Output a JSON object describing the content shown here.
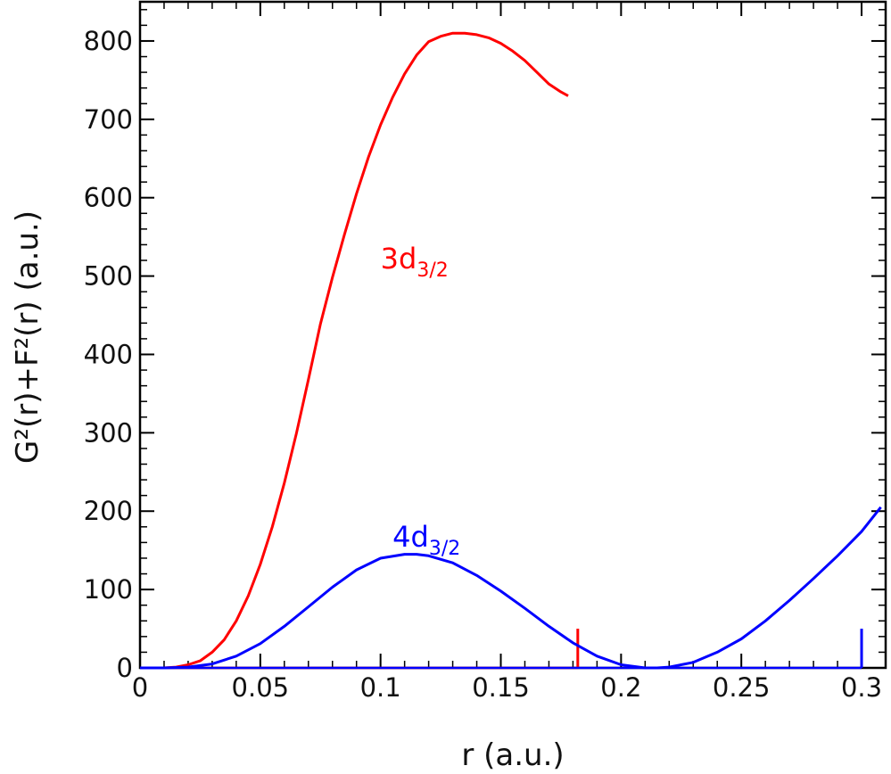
{
  "chart_data": {
    "type": "line",
    "xlabel": "r (a.u.)",
    "ylabel": "G²(r)+F²(r) (a.u.)",
    "xlim": [
      0,
      0.31
    ],
    "ylim": [
      0,
      850
    ],
    "x_ticks": [
      0,
      0.05,
      0.1,
      0.15,
      0.2,
      0.25,
      0.3
    ],
    "x_tick_labels": [
      "0",
      "0.05",
      "0.1",
      "0.15",
      "0.2",
      "0.25",
      "0.3"
    ],
    "y_ticks": [
      0,
      100,
      200,
      300,
      400,
      500,
      600,
      700,
      800
    ],
    "y_tick_labels": [
      "0",
      "100",
      "200",
      "300",
      "400",
      "500",
      "600",
      "700",
      "800"
    ],
    "grid": false,
    "series": [
      {
        "name": "3d3/2",
        "label_main": "3d",
        "label_sub": "3/2",
        "color": "#ff0000",
        "x": [
          0,
          0.01,
          0.015,
          0.02,
          0.025,
          0.03,
          0.035,
          0.04,
          0.045,
          0.05,
          0.055,
          0.06,
          0.065,
          0.07,
          0.075,
          0.08,
          0.085,
          0.09,
          0.095,
          0.1,
          0.105,
          0.11,
          0.115,
          0.12,
          0.125,
          0.13,
          0.135,
          0.14,
          0.145,
          0.15,
          0.155,
          0.16,
          0.165,
          0.17,
          0.175,
          0.178
        ],
        "y": [
          0,
          0,
          1,
          4,
          9,
          20,
          36,
          60,
          92,
          132,
          180,
          236,
          299,
          368,
          439,
          498,
          553,
          605,
          652,
          693,
          728,
          758,
          782,
          799,
          806,
          810,
          810,
          808,
          804,
          797,
          787,
          775,
          760,
          745,
          735,
          730
        ],
        "marker_x": 0.182,
        "marker_height": 50
      },
      {
        "name": "4d3/2",
        "label_main": "4d",
        "label_sub": "3/2",
        "color": "#0000ff",
        "x": [
          0,
          0.01,
          0.02,
          0.03,
          0.04,
          0.05,
          0.06,
          0.07,
          0.08,
          0.09,
          0.1,
          0.11,
          0.115,
          0.12,
          0.13,
          0.14,
          0.15,
          0.16,
          0.17,
          0.18,
          0.19,
          0.2,
          0.21,
          0.215,
          0.22,
          0.23,
          0.24,
          0.25,
          0.26,
          0.27,
          0.28,
          0.29,
          0.3,
          0.308
        ],
        "y": [
          0,
          0,
          1,
          5,
          15,
          31,
          53,
          78,
          103,
          125,
          140,
          145,
          145,
          143,
          134,
          118,
          98,
          76,
          53,
          32,
          15,
          4,
          0,
          0,
          1,
          7,
          20,
          37,
          60,
          86,
          114,
          143,
          174,
          205
        ],
        "marker_x": 0.3,
        "marker_height": 50
      }
    ],
    "annotations": [
      {
        "series": "3d3/2",
        "text_main": "3d",
        "text_sub": "3/2",
        "x": 0.1,
        "y": 510
      },
      {
        "series": "4d3/2",
        "text_main": "4d",
        "text_sub": "3/2",
        "x": 0.105,
        "y": 155
      }
    ]
  }
}
